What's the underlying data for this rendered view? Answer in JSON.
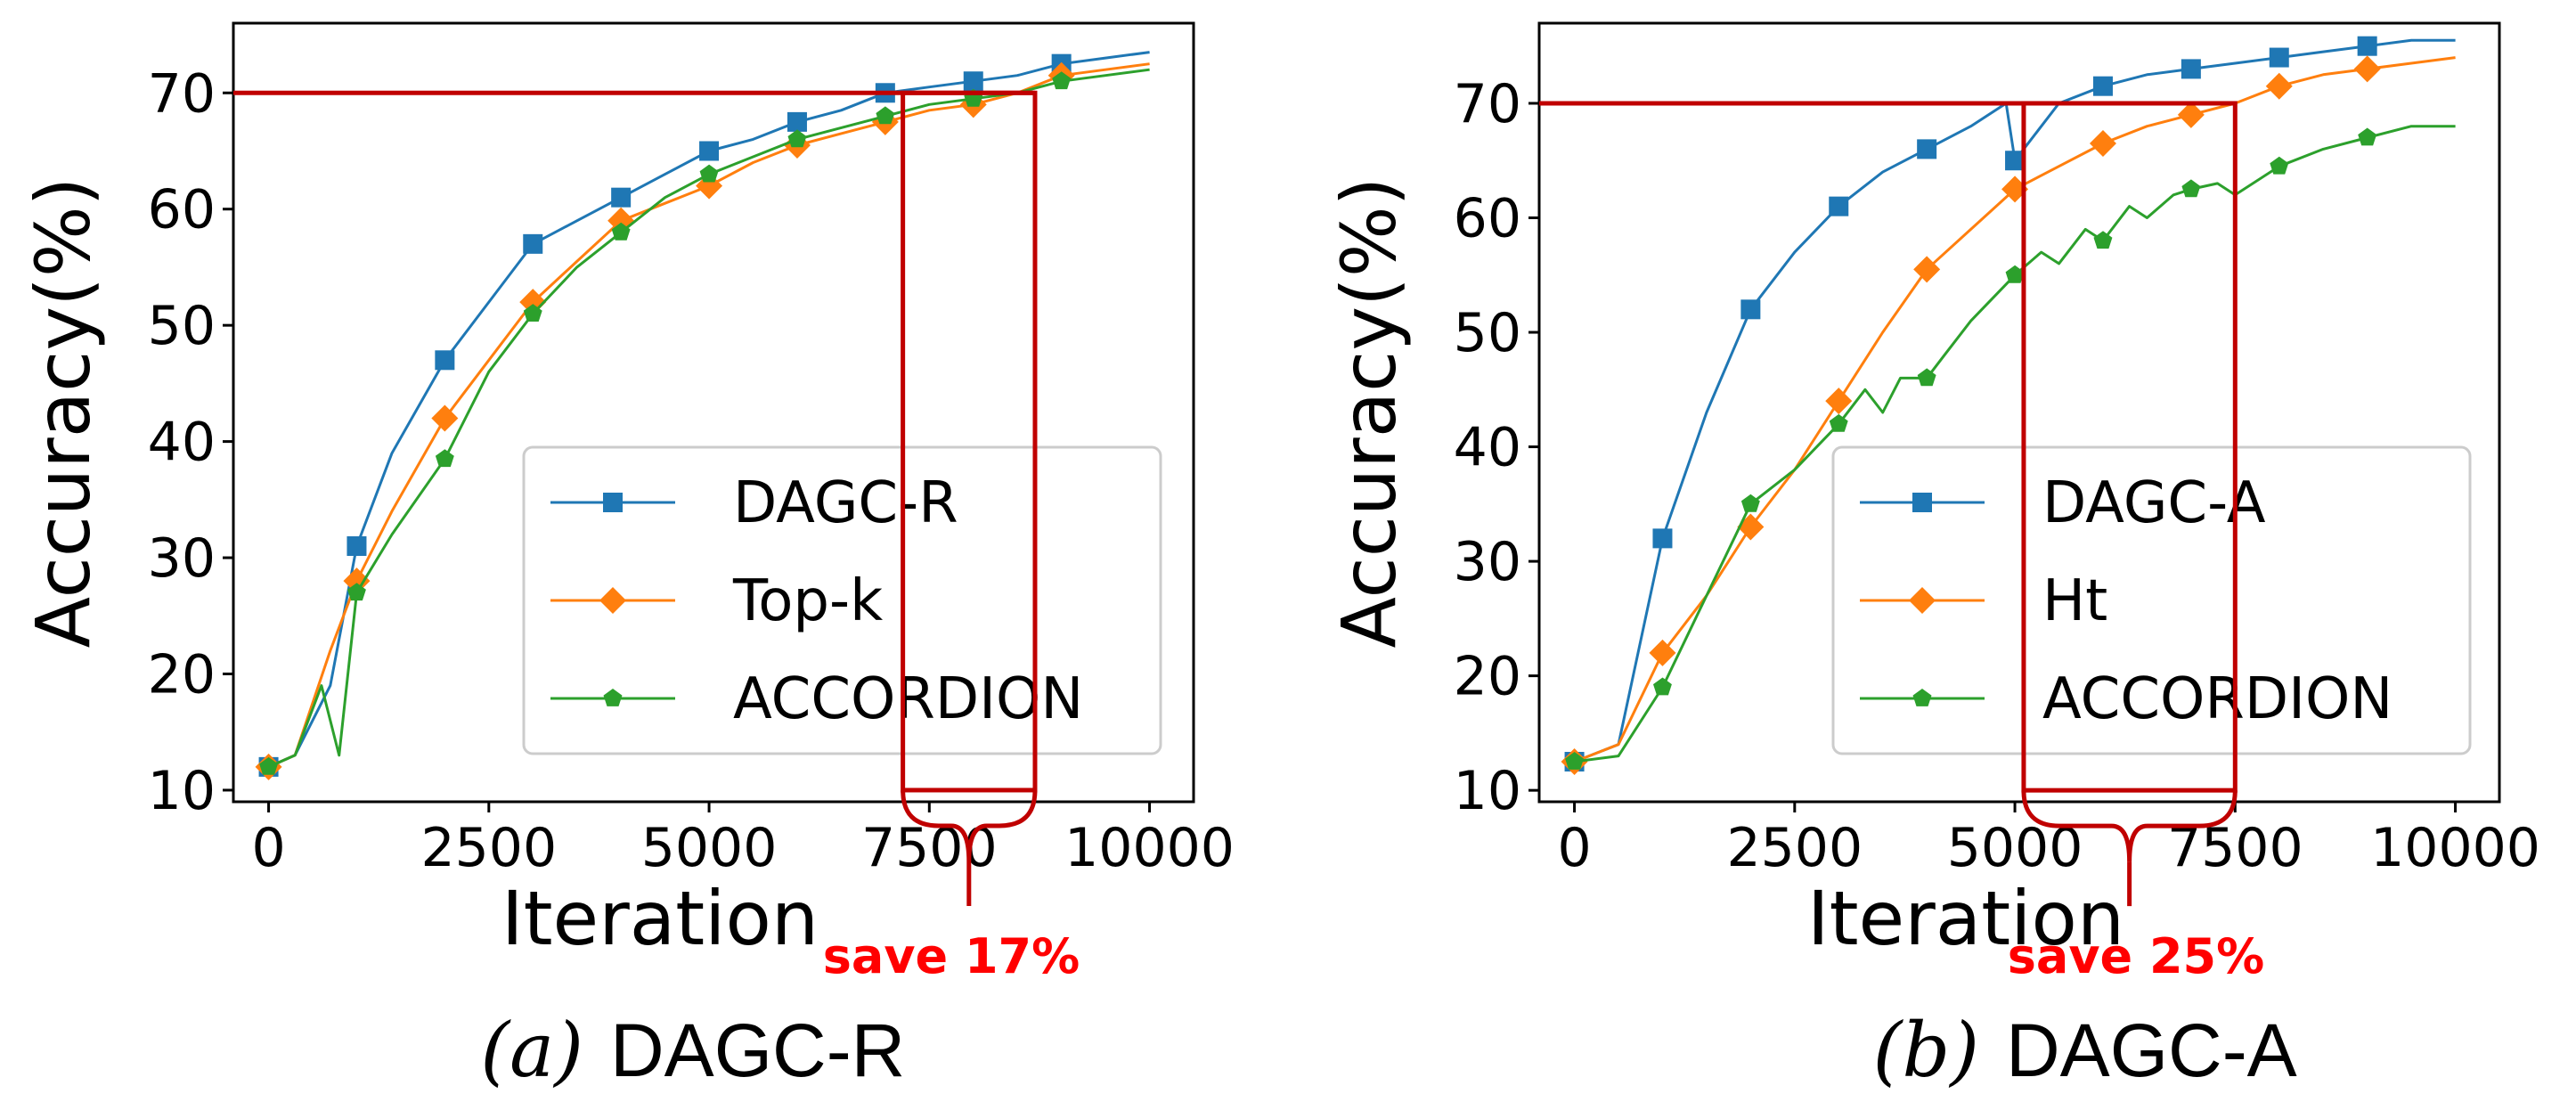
{
  "chart_data": [
    {
      "type": "line",
      "caption_label": "(a)",
      "caption_text": "DAGC-R",
      "xlabel": "Iteration",
      "ylabel": "Accuracy(%)",
      "xlim": [
        -400,
        10500
      ],
      "ylim": [
        9,
        76
      ],
      "xticks": [
        0,
        2500,
        5000,
        7500,
        10000
      ],
      "yticks": [
        10,
        20,
        30,
        40,
        50,
        60,
        70
      ],
      "legend_position": "lower right",
      "grid": false,
      "series": [
        {
          "name": "DAGC-R",
          "color": "#1f77b4",
          "marker": "square",
          "x": [
            0,
            300,
            700,
            1000,
            1400,
            2000,
            2500,
            3000,
            3500,
            4000,
            4500,
            5000,
            5500,
            6000,
            6500,
            7000,
            7500,
            8000,
            8500,
            9000,
            9500,
            10000
          ],
          "y": [
            12,
            13,
            19,
            31,
            39,
            47,
            52,
            57,
            59,
            61,
            63,
            65,
            66,
            67.5,
            68.5,
            70,
            70.5,
            71,
            71.5,
            72.5,
            73,
            73.5
          ]
        },
        {
          "name": "Top-k",
          "color": "#ff7f0e",
          "marker": "diamond",
          "x": [
            0,
            300,
            700,
            1000,
            1400,
            2000,
            2500,
            3000,
            3500,
            4000,
            4500,
            5000,
            5500,
            6000,
            6500,
            7000,
            7500,
            8000,
            8500,
            9000,
            9500,
            10000
          ],
          "y": [
            12,
            13,
            22,
            28,
            34,
            42,
            47,
            52,
            55.5,
            59,
            60.5,
            62,
            64,
            65.5,
            66.5,
            67.5,
            68.5,
            69,
            70,
            71.5,
            72,
            72.5
          ]
        },
        {
          "name": "ACCORDION",
          "color": "#2ca02c",
          "marker": "pentagon",
          "x": [
            0,
            300,
            600,
            800,
            1000,
            1400,
            2000,
            2500,
            3000,
            3500,
            4000,
            4500,
            5000,
            5500,
            6000,
            6500,
            7000,
            7500,
            8000,
            8500,
            9000,
            9500,
            10000
          ],
          "y": [
            12,
            13,
            19,
            13,
            27,
            32,
            38.5,
            46,
            51,
            55,
            58,
            61,
            63,
            64.5,
            66,
            67,
            68,
            69,
            69.5,
            70,
            71,
            71.5,
            72
          ]
        }
      ],
      "markers_x": [
        0,
        1000,
        2000,
        3000,
        4000,
        5000,
        6000,
        7000,
        8000,
        9000
      ],
      "annotation": {
        "threshold": 70,
        "box_x": [
          7200,
          8700
        ],
        "box_y": [
          10,
          70
        ],
        "text": "save 17%"
      }
    },
    {
      "type": "line",
      "caption_label": "(b)",
      "caption_text": "DAGC-A",
      "xlabel": "Iteration",
      "ylabel": "Accuracy(%)",
      "xlim": [
        -400,
        10500
      ],
      "ylim": [
        9,
        77
      ],
      "xticks": [
        0,
        2500,
        5000,
        7500,
        10000
      ],
      "yticks": [
        10,
        20,
        30,
        40,
        50,
        60,
        70
      ],
      "legend_position": "lower right",
      "grid": false,
      "series": [
        {
          "name": "DAGC-A",
          "color": "#1f77b4",
          "marker": "square",
          "x": [
            0,
            500,
            1000,
            1500,
            2000,
            2500,
            3000,
            3500,
            4000,
            4500,
            4900,
            5000,
            5500,
            6000,
            6500,
            7000,
            7500,
            8000,
            8500,
            9000,
            9500,
            10000
          ],
          "y": [
            12.5,
            14,
            32,
            43,
            52,
            57,
            61,
            64,
            66,
            68,
            70,
            65,
            70,
            71.5,
            72.5,
            73,
            73.5,
            74,
            74.5,
            75,
            75.5,
            75.5
          ]
        },
        {
          "name": "Ht",
          "color": "#ff7f0e",
          "marker": "diamond",
          "x": [
            0,
            500,
            1000,
            1500,
            2000,
            2500,
            3000,
            3500,
            4000,
            4500,
            5000,
            5500,
            6000,
            6500,
            7000,
            7500,
            8000,
            8500,
            9000,
            9500,
            10000
          ],
          "y": [
            12.5,
            14,
            22,
            27,
            33,
            38,
            44,
            50,
            55.5,
            59,
            62.5,
            64.5,
            66.5,
            68,
            69,
            70,
            71.5,
            72.5,
            73,
            73.5,
            74
          ]
        },
        {
          "name": "ACCORDION",
          "color": "#2ca02c",
          "marker": "pentagon",
          "x": [
            0,
            500,
            1000,
            1500,
            2000,
            2500,
            3000,
            3300,
            3500,
            3700,
            4000,
            4200,
            4500,
            5000,
            5300,
            5500,
            5800,
            6000,
            6300,
            6500,
            6800,
            7000,
            7300,
            7500,
            8000,
            8500,
            9000,
            9500,
            10000
          ],
          "y": [
            12.5,
            13,
            19,
            27,
            35,
            38,
            42,
            45,
            43,
            46,
            46,
            48,
            51,
            55,
            57,
            56,
            59,
            58,
            61,
            60,
            62,
            62.5,
            63,
            62,
            64.5,
            66,
            67,
            68,
            68
          ]
        }
      ],
      "markers_x": [
        0,
        1000,
        2000,
        3000,
        4000,
        5000,
        6000,
        7000,
        8000,
        9000
      ],
      "annotation": {
        "threshold": 70,
        "box_x": [
          5100,
          7500
        ],
        "box_y": [
          10,
          70
        ],
        "text": "save 25%"
      }
    }
  ]
}
